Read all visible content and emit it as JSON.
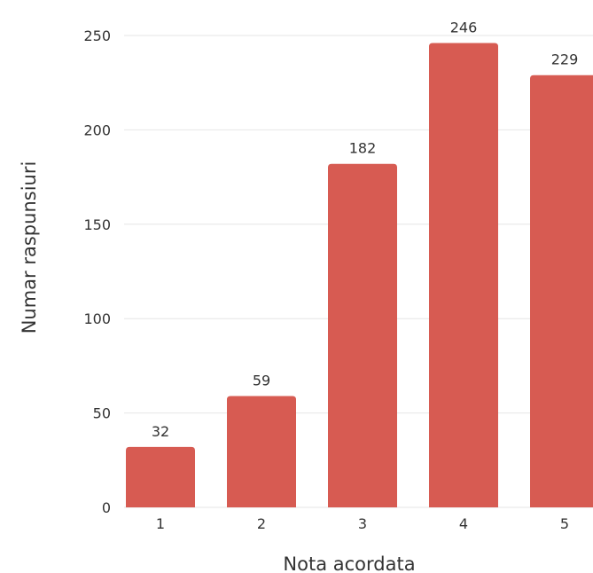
{
  "chart_data": {
    "type": "bar",
    "categories": [
      "1",
      "2",
      "3",
      "4",
      "5"
    ],
    "values": [
      32,
      59,
      182,
      246,
      229
    ],
    "data_labels": [
      "32",
      "59",
      "182",
      "246",
      "229"
    ],
    "xlabel": "Nota acordata",
    "ylabel": "Numar raspunsiuri",
    "ylim": [
      0,
      250
    ],
    "yticks": [
      0,
      50,
      100,
      150,
      200,
      250
    ],
    "grid": true,
    "legend": "none",
    "bar_color": "#d75b52"
  }
}
